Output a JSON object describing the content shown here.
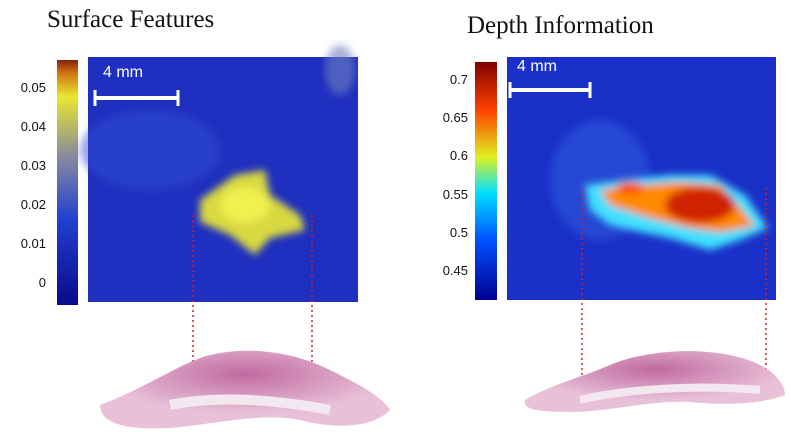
{
  "panels": [
    {
      "title": "Surface Features",
      "scale_label": "4 mm",
      "colorbar_ticks": [
        0.05,
        0.04,
        0.03,
        0.02,
        0.01,
        0
      ]
    },
    {
      "title": "Depth Information",
      "scale_label": "4 mm",
      "colorbar_ticks": [
        0.7,
        0.65,
        0.6,
        0.55,
        0.5,
        0.45
      ]
    }
  ]
}
